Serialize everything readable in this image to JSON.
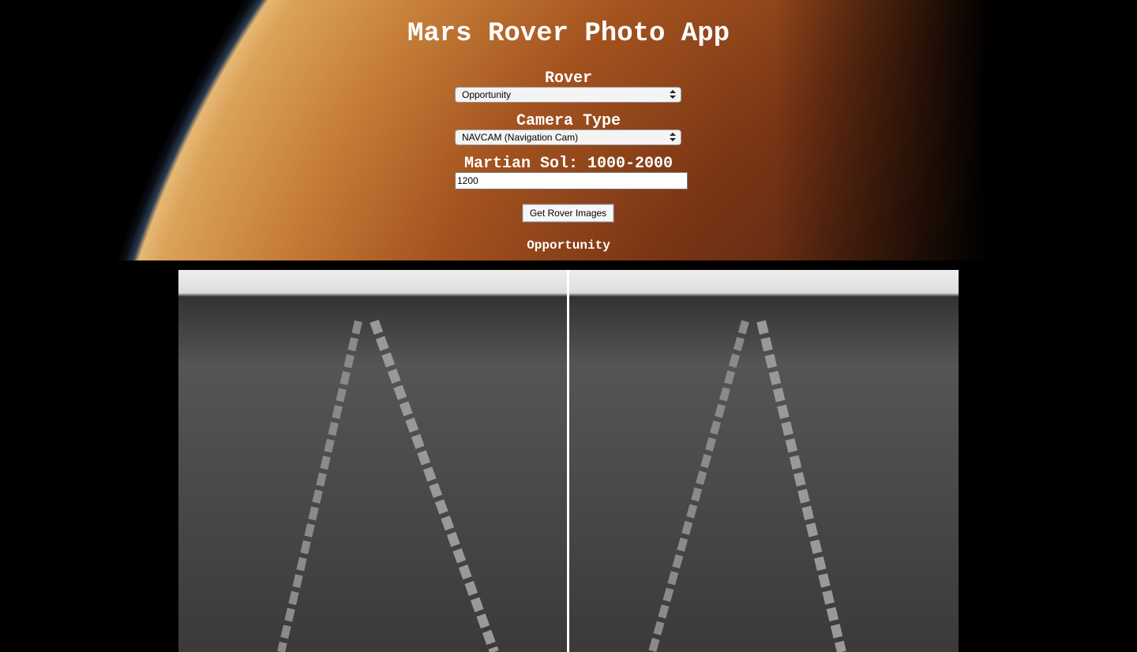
{
  "header": {
    "title": "Mars Rover Photo App"
  },
  "form": {
    "rover_label": "Rover",
    "rover_value": "Opportunity",
    "camera_label": "Camera Type",
    "camera_value": "NAVCAM (Navigation Cam)",
    "sol_label": "Martian Sol: 1000-2000",
    "sol_value": "1200",
    "button": "Get Rover Images"
  },
  "results": {
    "rover_name": "Opportunity"
  }
}
